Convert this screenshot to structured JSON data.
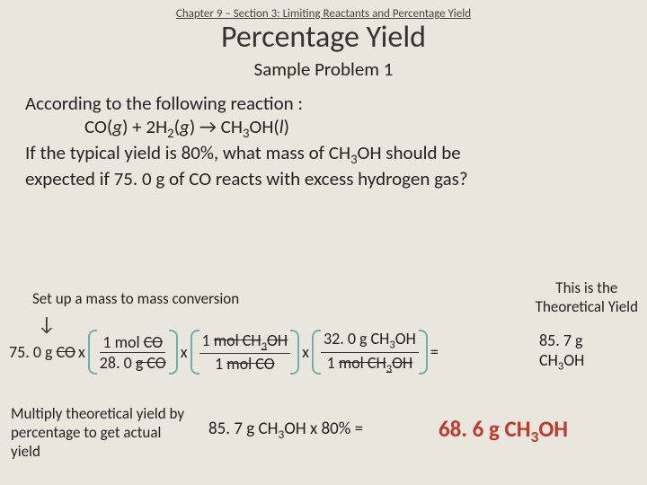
{
  "header": "Chapter 9 – Section 3: Limiting Reactants and Percentage Yield",
  "title": "Percentage Yield",
  "subtitle": "Sample Problem 1",
  "problem": {
    "line1": "According to the following reaction :",
    "equation_parts": [
      "CO(",
      "g",
      ") + 2H",
      "2",
      "(",
      "g",
      ") → CH",
      "3",
      "OH(",
      "l",
      ")"
    ],
    "line2a": "If the typical yield is 80%, what mass of CH",
    "line2b": "OH should be",
    "line3": "expected if 75. 0 g of CO reacts with excess hydrogen gas?"
  },
  "hint1": "Set up a mass to mass conversion",
  "theo_label_1": "This is the",
  "theo_label_2": "Theoretical Yield",
  "conversion": {
    "start_val": "75. 0 g",
    "start_unit": "CO",
    "f1_top_a": "1 mol",
    "f1_top_b": "CO",
    "f1_bot_a": "28. 0",
    "f1_bot_b": "g CO",
    "f2_top_a": "1",
    "f2_top_b": "mol CH",
    "f2_top_c": "OH",
    "f2_bot_a": "1",
    "f2_bot_b": "mol CO",
    "f3_top_a": "32. 0 g CH",
    "f3_top_c": "OH",
    "f3_bot_a": "1",
    "f3_bot_b": "mol CH",
    "f3_bot_c": "OH",
    "result_val": "85. 7 g",
    "result_unit_a": "CH",
    "result_unit_b": "OH"
  },
  "hint2": "Multiply theoretical yield by percentage to get actual yield",
  "final": {
    "lhs_a": "85. 7 g CH",
    "lhs_b": "OH  x  80%  =",
    "ans_a": "68. 6 g CH",
    "ans_b": "OH"
  },
  "colors": {
    "bg": "#e9e6dd",
    "accent": "#c0392b",
    "bracket": "#7aa"
  }
}
